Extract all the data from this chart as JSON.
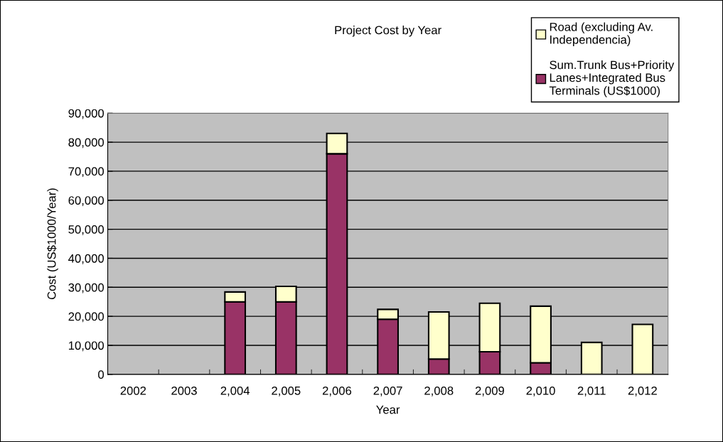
{
  "chart_data": {
    "type": "bar",
    "stacked": true,
    "title": "Project Cost by Year",
    "xlabel": "Year",
    "ylabel": "Cost (US$1000/Year)",
    "categories": [
      "2002",
      "2003",
      "2,004",
      "2,005",
      "2,006",
      "2,007",
      "2,008",
      "2,009",
      "2,010",
      "2,011",
      "2,012"
    ],
    "series": [
      {
        "name": "Sum.Trunk Bus+Priority Lanes+Integrated Bus Terminals (US$1000)",
        "color": "#993366",
        "values": [
          null,
          null,
          25000,
          25000,
          76000,
          19000,
          5300,
          7800,
          4000,
          null,
          null
        ]
      },
      {
        "name": "Road (excluding Av. Independencia)",
        "color": "#ffffcc",
        "values": [
          null,
          null,
          3400,
          5300,
          7000,
          3400,
          16200,
          16700,
          19500,
          11000,
          17200
        ]
      }
    ],
    "ylim": [
      0,
      90000
    ],
    "yticks": [
      {
        "value": 0,
        "label": "0"
      },
      {
        "value": 10000,
        "label": "10,000"
      },
      {
        "value": 20000,
        "label": "20,000"
      },
      {
        "value": 30000,
        "label": "30,000"
      },
      {
        "value": 40000,
        "label": "40,000"
      },
      {
        "value": 50000,
        "label": "50,000"
      },
      {
        "value": 60000,
        "label": "60,000"
      },
      {
        "value": 70000,
        "label": "70,000"
      },
      {
        "value": 80000,
        "label": "80,000"
      },
      {
        "value": 90000,
        "label": "90,000"
      }
    ],
    "grid": "y",
    "legend": "top right"
  }
}
